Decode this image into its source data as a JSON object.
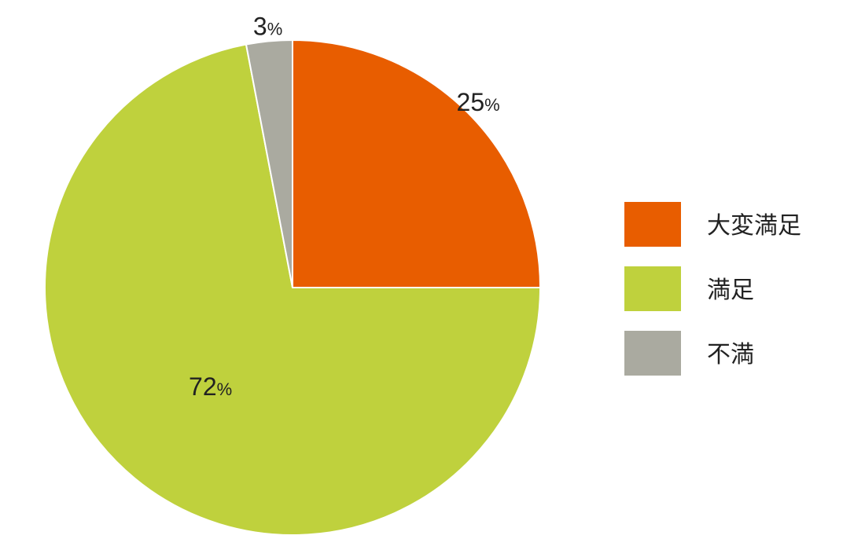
{
  "chart_data": {
    "type": "pie",
    "categories": [
      "大変満足",
      "満足",
      "不満"
    ],
    "values": [
      25,
      72,
      3
    ],
    "data_labels": [
      {
        "number": "25",
        "unit": "%"
      },
      {
        "number": "72",
        "unit": "%"
      },
      {
        "number": "3",
        "unit": "%"
      }
    ],
    "colors": [
      "#E85D00",
      "#BFD13D",
      "#AAAAA0"
    ],
    "start": "12 o'clock",
    "direction": "clockwise",
    "legend": {
      "placement": "right",
      "entries": [
        "大変満足",
        "満足",
        "不満"
      ]
    },
    "title": ""
  }
}
